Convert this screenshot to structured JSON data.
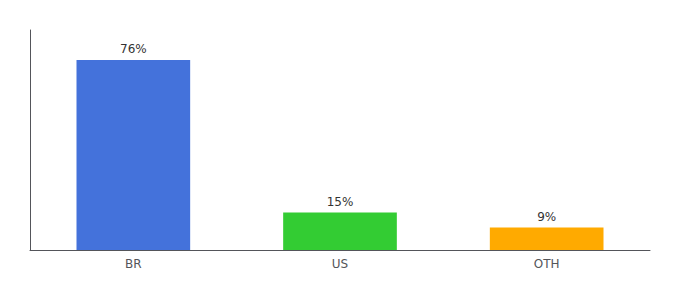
{
  "chart_data": {
    "type": "bar",
    "categories": [
      "BR",
      "US",
      "OTH"
    ],
    "values": [
      76,
      15,
      9
    ],
    "value_labels": [
      "76%",
      "15%",
      "9%"
    ],
    "colors": [
      "#4472db",
      "#33cc33",
      "#ffaa00"
    ],
    "data_labels": true,
    "ylim": [
      0,
      88
    ],
    "grid": false,
    "tick_labels": "x"
  }
}
